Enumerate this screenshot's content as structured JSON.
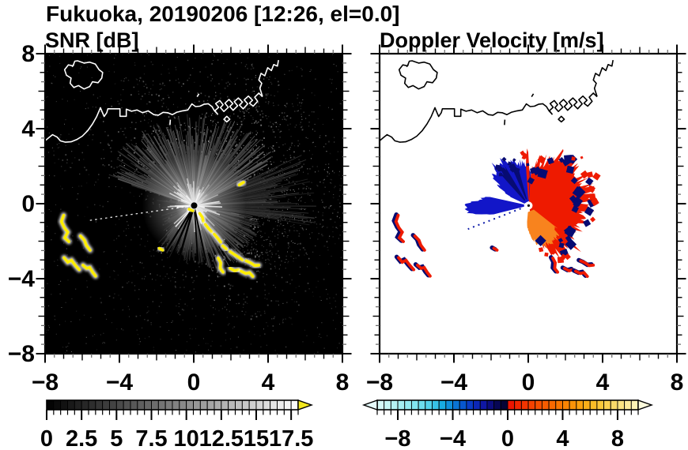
{
  "title": "Fukuoka, 20190206 [12:26, el=0.0]",
  "panels": {
    "snr": {
      "title": "SNR [dB]"
    },
    "velocity": {
      "title": "Doppler Velocity [m/s]"
    }
  },
  "axes": {
    "x_range": [
      -8,
      8
    ],
    "y_range": [
      -8,
      8
    ],
    "x_tick_values": [
      -8,
      -4,
      0,
      4,
      8
    ],
    "x_tick_labels": [
      "−8",
      "−4",
      "0",
      "4",
      "8"
    ],
    "y_tick_values": [
      8,
      4,
      0,
      -4,
      -8
    ],
    "y_tick_labels": [
      "8",
      "4",
      "0",
      "−4",
      "−8"
    ],
    "minor_tick_step": 0.5
  },
  "colorbars": {
    "snr": {
      "min": 0,
      "max": 18,
      "cell_step": 0.5,
      "major_tick_step": 2.5,
      "label_values": [
        0,
        2.5,
        5,
        7.5,
        10,
        12.5,
        15,
        17.5
      ],
      "labels": [
        "0",
        "2.5",
        "5",
        "7.5",
        "10",
        "12.5",
        "15",
        "17.5"
      ],
      "colormap": "grayscale black to white",
      "overflow_arrow_color": "#f2e71e"
    },
    "velocity": {
      "min": -9.5,
      "max": 9.5,
      "cell_step": 0.5,
      "label_values": [
        -8,
        -4,
        0,
        4,
        8
      ],
      "labels": [
        "−8",
        "−4",
        "0",
        "4",
        "8"
      ],
      "underflow_arrow_color": "#e6fcfc",
      "overflow_arrow_color": "#fdfbdc",
      "stops": [
        [
          -9.5,
          "#dcfaf8"
        ],
        [
          -8.5,
          "#bdf3f3"
        ],
        [
          -7.5,
          "#9cecf0"
        ],
        [
          -6.5,
          "#78e2ee"
        ],
        [
          -5.5,
          "#46cdea"
        ],
        [
          -4.75,
          "#18ace2"
        ],
        [
          -4.0,
          "#0b82d8"
        ],
        [
          -3.25,
          "#0757cf"
        ],
        [
          -2.5,
          "#0b2fc0"
        ],
        [
          -1.75,
          "#0f17a4"
        ],
        [
          -1.25,
          "#0c0d7e"
        ],
        [
          -0.75,
          "#070754"
        ],
        [
          -0.25,
          "#040436"
        ],
        [
          0.25,
          "#ec1500"
        ],
        [
          0.75,
          "#f02600"
        ],
        [
          1.5,
          "#f43b00"
        ],
        [
          2.5,
          "#f75500"
        ],
        [
          3.5,
          "#f86f00"
        ],
        [
          4.5,
          "#f98c04"
        ],
        [
          5.5,
          "#f9a812"
        ],
        [
          6.5,
          "#f9c22e"
        ],
        [
          7.5,
          "#fad65c"
        ],
        [
          8.5,
          "#fbe88e"
        ],
        [
          9.25,
          "#fcf2b4"
        ]
      ]
    }
  },
  "chart_data": {
    "type": "heatmap",
    "title": "Fukuoka, 20190206 [12:26, el=0.0]",
    "subtitle_left": "SNR [dB]",
    "subtitle_right": "Doppler Velocity [m/s]",
    "x_range": [
      -8,
      8
    ],
    "y_range": [
      -8,
      8
    ],
    "grid": false,
    "radar_center": [
      0.02,
      -0.1
    ],
    "panels": [
      {
        "id": "snr",
        "title": "SNR [dB]",
        "value_range": [
          0,
          18
        ],
        "units": "dB"
      },
      {
        "id": "velocity",
        "title": "Doppler Velocity [m/s]",
        "value_range": [
          -9.5,
          9.5
        ],
        "units": "m/s"
      }
    ],
    "coastline": {
      "island": [
        [
          -6.25,
          7.62
        ],
        [
          -5.9,
          7.5
        ],
        [
          -5.6,
          7.55
        ],
        [
          -5.3,
          7.45
        ],
        [
          -5.1,
          7.15
        ],
        [
          -4.9,
          7.0
        ],
        [
          -4.95,
          6.7
        ],
        [
          -5.15,
          6.45
        ],
        [
          -5.45,
          6.5
        ],
        [
          -5.6,
          6.25
        ],
        [
          -5.9,
          6.12
        ],
        [
          -6.2,
          6.3
        ],
        [
          -6.45,
          6.2
        ],
        [
          -6.65,
          6.42
        ],
        [
          -6.6,
          6.7
        ],
        [
          -6.85,
          6.85
        ],
        [
          -6.95,
          7.15
        ],
        [
          -6.75,
          7.4
        ],
        [
          -6.5,
          7.35
        ],
        [
          -6.4,
          7.6
        ],
        [
          -6.25,
          7.62
        ]
      ],
      "mainland": [
        [
          -8,
          3.35
        ],
        [
          -7.8,
          3.52
        ],
        [
          -7.6,
          3.68
        ],
        [
          -7.35,
          3.55
        ],
        [
          -7.18,
          3.35
        ],
        [
          -6.9,
          3.28
        ],
        [
          -6.6,
          3.3
        ],
        [
          -6.3,
          3.42
        ],
        [
          -6.0,
          3.6
        ],
        [
          -5.7,
          3.9
        ],
        [
          -5.45,
          4.25
        ],
        [
          -5.22,
          4.65
        ],
        [
          -5.02,
          5.12
        ],
        [
          -4.93,
          4.9
        ],
        [
          -4.82,
          4.65
        ],
        [
          -4.68,
          4.85
        ],
        [
          -4.62,
          5.06
        ],
        [
          -4.3,
          5.06
        ],
        [
          -3.97,
          5.06
        ],
        [
          -3.97,
          4.66
        ],
        [
          -3.63,
          4.66
        ],
        [
          -3.63,
          5.04
        ],
        [
          -3.35,
          4.93
        ],
        [
          -3.05,
          5.0
        ],
        [
          -2.75,
          4.85
        ],
        [
          -2.45,
          4.95
        ],
        [
          -2.15,
          4.75
        ],
        [
          -1.9,
          4.72
        ],
        [
          -1.65,
          4.87
        ],
        [
          -1.4,
          4.85
        ],
        [
          -1.15,
          4.75
        ],
        [
          -0.9,
          4.88
        ],
        [
          -0.6,
          4.95
        ],
        [
          -0.32,
          5.0
        ],
        [
          -0.1,
          5.32
        ],
        [
          0.1,
          5.18
        ],
        [
          0.33,
          5.2
        ],
        [
          0.55,
          5.3
        ],
        [
          0.78,
          5.33
        ],
        [
          0.98,
          5.18
        ],
        [
          1.12,
          4.95
        ],
        [
          1.28,
          4.78
        ]
      ],
      "port_piers": [
        [
          1.3,
          4.75
        ],
        [
          1.14,
          4.96
        ],
        [
          1.34,
          5.14
        ],
        [
          1.18,
          5.34
        ],
        [
          1.4,
          5.5
        ],
        [
          1.58,
          5.28
        ],
        [
          1.44,
          5.12
        ],
        [
          1.62,
          4.92
        ],
        [
          1.86,
          5.14
        ],
        [
          1.68,
          5.36
        ],
        [
          1.9,
          5.56
        ],
        [
          2.1,
          5.34
        ],
        [
          1.94,
          5.18
        ],
        [
          2.12,
          4.98
        ],
        [
          2.36,
          5.22
        ],
        [
          2.18,
          5.44
        ],
        [
          2.4,
          5.64
        ],
        [
          2.62,
          5.42
        ],
        [
          2.46,
          5.26
        ],
        [
          2.66,
          5.06
        ],
        [
          2.9,
          5.32
        ],
        [
          2.72,
          5.54
        ],
        [
          2.94,
          5.74
        ],
        [
          3.16,
          5.52
        ],
        [
          3.0,
          5.36
        ],
        [
          3.2,
          5.2
        ],
        [
          3.44,
          5.46
        ],
        [
          3.28,
          5.68
        ],
        [
          3.5,
          5.9
        ],
        [
          3.7,
          5.7
        ]
      ],
      "north_spit": [
        [
          3.7,
          5.72
        ],
        [
          3.56,
          6.15
        ],
        [
          3.66,
          6.42
        ],
        [
          3.5,
          6.6
        ],
        [
          3.62,
          6.95
        ],
        [
          3.82,
          6.82
        ],
        [
          3.98,
          7.25
        ],
        [
          4.18,
          7.1
        ],
        [
          4.3,
          7.42
        ],
        [
          4.5,
          7.34
        ],
        [
          4.56,
          7.66
        ]
      ],
      "islet": [
        [
          1.62,
          4.5
        ],
        [
          1.78,
          4.66
        ],
        [
          1.94,
          4.5
        ],
        [
          1.78,
          4.36
        ],
        [
          1.62,
          4.5
        ]
      ],
      "marks": [
        [
          [
            0.18,
            5.7
          ],
          [
            0.28,
            5.86
          ]
        ],
        [
          [
            -6.55,
            7.3
          ],
          [
            -6.45,
            7.42
          ]
        ],
        [
          [
            -1.28,
            4.2
          ],
          [
            -1.26,
            4.48
          ]
        ]
      ]
    },
    "tracks": {
      "outer": [
        [
          [
            2.82,
            -3.05
          ],
          [
            3.05,
            -3.15
          ],
          [
            3.28,
            -3.3
          ],
          [
            3.5,
            -3.28
          ]
        ],
        [
          [
            1.32,
            -2.9
          ],
          [
            1.45,
            -3.15
          ],
          [
            1.42,
            -3.45
          ],
          [
            1.58,
            -3.65
          ]
        ],
        [
          [
            1.95,
            -3.45
          ],
          [
            2.2,
            -3.58
          ],
          [
            2.42,
            -3.52
          ]
        ],
        [
          [
            2.55,
            -3.6
          ],
          [
            2.8,
            -3.72
          ],
          [
            3.0,
            -3.68
          ],
          [
            3.18,
            -3.88
          ]
        ],
        [
          [
            -1.85,
            -2.38
          ],
          [
            -1.68,
            -2.48
          ]
        ]
      ],
      "ships": [
        [
          [
            -7.0,
            -0.62
          ],
          [
            -7.12,
            -0.95
          ],
          [
            -6.96,
            -1.28
          ],
          [
            -6.78,
            -1.52
          ],
          [
            -6.94,
            -1.82
          ],
          [
            -6.72,
            -2.02
          ]
        ],
        [
          [
            -6.1,
            -1.72
          ],
          [
            -5.88,
            -1.95
          ],
          [
            -5.78,
            -2.22
          ],
          [
            -5.58,
            -2.48
          ]
        ],
        [
          [
            -6.98,
            -2.88
          ],
          [
            -6.78,
            -3.12
          ],
          [
            -6.58,
            -3.02
          ],
          [
            -6.38,
            -3.28
          ],
          [
            -6.16,
            -3.52
          ]
        ],
        [
          [
            -5.96,
            -3.28
          ],
          [
            -5.76,
            -3.45
          ],
          [
            -5.6,
            -3.4
          ],
          [
            -5.44,
            -3.66
          ],
          [
            -5.28,
            -3.86
          ]
        ]
      ]
    },
    "snr": {
      "background": "#000000",
      "coast_color": "#ffffff",
      "high_color": "#ffee00",
      "sectors": [
        {
          "az": [
            287,
            425
          ],
          "w": 1.0,
          "r": 4.8
        },
        {
          "az": [
            65,
            100
          ],
          "w": 0.55,
          "r": 6.5
        },
        {
          "az": [
            100,
            170
          ],
          "w": 0.8,
          "r": 3.6
        },
        {
          "az": [
            170,
            225
          ],
          "w": 0.45,
          "r": 3.0
        },
        {
          "az": [
            225,
            252
          ],
          "w": 0.06,
          "r": 2.2
        },
        {
          "az": [
            252,
            287
          ],
          "w": 0.04,
          "r": 2.2
        }
      ],
      "blocked_rays": [
        [
          168,
          3.0,
          1.8
        ],
        [
          176,
          3.0,
          1.8
        ],
        [
          196,
          3.4,
          2.4
        ],
        [
          204,
          3.4,
          2.4
        ],
        [
          212,
          3.2,
          2.2
        ]
      ],
      "dotted_ray": {
        "az": 262,
        "r0": 0.3,
        "r1": 5.7
      },
      "center_streaks": [
        [
          [
            0.32,
            -0.52
          ],
          [
            0.46,
            -0.72
          ],
          [
            0.52,
            -0.95
          ]
        ],
        [
          [
            0.62,
            -1.1
          ],
          [
            0.8,
            -1.32
          ],
          [
            0.97,
            -1.5
          ]
        ],
        [
          [
            1.1,
            -1.62
          ],
          [
            1.3,
            -1.85
          ],
          [
            1.45,
            -2.05
          ]
        ],
        [
          [
            1.56,
            -2.25
          ],
          [
            1.76,
            -2.42
          ]
        ],
        [
          [
            1.95,
            -2.55
          ],
          [
            2.2,
            -2.72
          ],
          [
            2.45,
            -2.88
          ],
          [
            2.62,
            -3.0
          ]
        ],
        [
          [
            -0.25,
            -0.3
          ],
          [
            -0.05,
            -0.38
          ]
        ]
      ],
      "isolated_streak": [
        [
          2.45,
          1.0
        ],
        [
          2.68,
          1.14
        ]
      ]
    },
    "velocity": {
      "background": "#ffffff",
      "coast_color": "#000000",
      "negative_color": "#1216c8",
      "negative_dark": "#070b72",
      "positive_color": "#ee1a00",
      "positive_warm": "#f8831e",
      "wedges": {
        "negative_nw": [
          [
            295,
            1.1
          ],
          [
            303,
            1.9
          ],
          [
            310,
            2.5
          ],
          [
            318,
            2.75
          ],
          [
            326,
            2.9
          ],
          [
            334,
            2.6
          ],
          [
            342,
            2.45
          ],
          [
            350,
            2.3
          ],
          [
            356,
            2.15
          ],
          [
            362,
            1.9
          ],
          [
            366,
            1.5
          ]
        ],
        "negative_w": [
          [
            256,
            2.0
          ],
          [
            262,
            3.0
          ],
          [
            267,
            3.45
          ],
          [
            272,
            3.3
          ],
          [
            277,
            2.9
          ],
          [
            283,
            2.2
          ]
        ],
        "navy_streaks": [
          [
            [
              318,
              2.3
            ],
            [
              324,
              2.45
            ],
            [
              329,
              2.3
            ]
          ],
          [
            [
              336,
              2.1
            ],
            [
              341,
              2.25
            ],
            [
              345,
              2.1
            ]
          ]
        ],
        "positive_fan": [
          [
            4,
            1.7
          ],
          [
            12,
            2.5
          ],
          [
            20,
            2.3
          ],
          [
            30,
            2.8
          ],
          [
            40,
            3.1
          ],
          [
            50,
            3.25
          ],
          [
            60,
            3.1
          ],
          [
            70,
            3.35
          ],
          [
            80,
            3.25
          ],
          [
            90,
            3.1
          ],
          [
            100,
            2.95
          ],
          [
            110,
            3.0
          ],
          [
            120,
            2.85
          ],
          [
            130,
            3.0
          ],
          [
            140,
            3.1
          ],
          [
            150,
            2.9
          ],
          [
            158,
            2.5
          ],
          [
            166,
            1.9
          ]
        ],
        "warm_core": [
          [
            128,
            1.9
          ],
          [
            138,
            2.2
          ],
          [
            148,
            2.35
          ],
          [
            158,
            2.3
          ],
          [
            168,
            2.1
          ],
          [
            178,
            1.5
          ],
          [
            186,
            0.9
          ]
        ],
        "north_spike": [
          [
            356,
            2.0
          ],
          [
            358,
            2.9
          ],
          [
            360,
            2.5
          ],
          [
            362,
            1.6
          ]
        ]
      },
      "dotted_ray": {
        "az": 249,
        "r0": 0.45,
        "r1": 3.5
      }
    }
  }
}
